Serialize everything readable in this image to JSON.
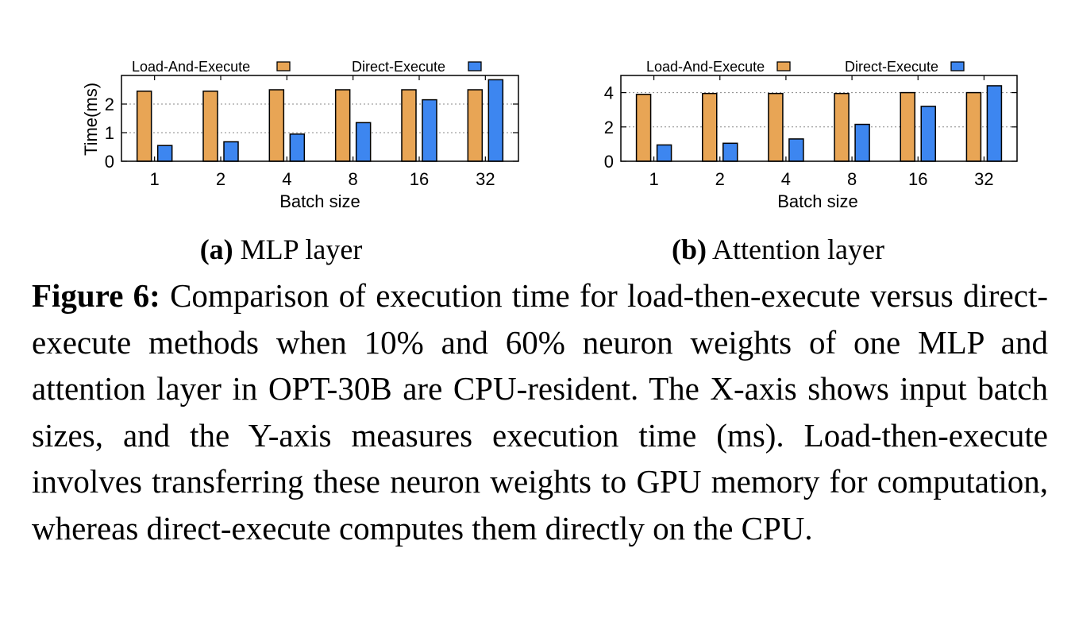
{
  "chart_data": [
    {
      "type": "bar",
      "subcaption_label": "(a)",
      "subcaption_text": "MLP layer",
      "categories": [
        "1",
        "2",
        "4",
        "8",
        "16",
        "32"
      ],
      "series": [
        {
          "name": "Load-And-Execute",
          "color": "#E8A555",
          "values": [
            2.45,
            2.45,
            2.5,
            2.5,
            2.5,
            2.5
          ]
        },
        {
          "name": "Direct-Execute",
          "color": "#3D86F0",
          "values": [
            0.55,
            0.68,
            0.95,
            1.35,
            2.15,
            2.85
          ]
        }
      ],
      "xlabel": "Batch size",
      "ylabel": "Time(ms)",
      "ylim": [
        0,
        3
      ],
      "yticks": [
        "0",
        "1",
        "2"
      ],
      "ytick_values": [
        0,
        1,
        2
      ],
      "grid": true,
      "legend_position": "top"
    },
    {
      "type": "bar",
      "subcaption_label": "(b)",
      "subcaption_text": "Attention layer",
      "categories": [
        "1",
        "2",
        "4",
        "8",
        "16",
        "32"
      ],
      "series": [
        {
          "name": "Load-And-Execute",
          "color": "#E8A555",
          "values": [
            3.9,
            3.95,
            3.95,
            3.95,
            4.0,
            4.0
          ]
        },
        {
          "name": "Direct-Execute",
          "color": "#3D86F0",
          "values": [
            0.95,
            1.05,
            1.3,
            2.15,
            3.2,
            4.4
          ]
        }
      ],
      "xlabel": "Batch size",
      "ylabel": "",
      "ylim": [
        0,
        5
      ],
      "yticks": [
        "0",
        "2",
        "4"
      ],
      "ytick_values": [
        0,
        2,
        4
      ],
      "grid": true,
      "legend_position": "top"
    }
  ],
  "caption": {
    "label": "Figure 6:",
    "text": "Comparison of execution time for load-then-execute versus direct-execute methods when 10% and 60% neuron weights of one MLP and attention layer in OPT-30B are CPU-resident. The X-axis shows input batch sizes, and the Y-axis measures execution time (ms). Load-then-execute involves transferring these neuron weights to GPU memory for computation, whereas direct-execute computes them directly on the CPU."
  }
}
